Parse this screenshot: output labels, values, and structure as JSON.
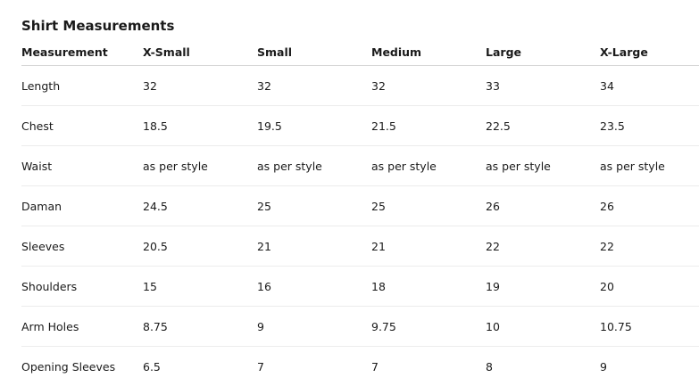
{
  "title": "Shirt Measurements",
  "headers": [
    "Measurement",
    "X-Small",
    "Small",
    "Medium",
    "Large",
    "X-Large"
  ],
  "rows": [
    [
      "Length",
      "32",
      "32",
      "32",
      "33",
      "34"
    ],
    [
      "Chest",
      "18.5",
      "19.5",
      "21.5",
      "22.5",
      "23.5"
    ],
    [
      "Waist",
      "as per style",
      "as per style",
      "as per style",
      "as per style",
      "as per style"
    ],
    [
      "Daman",
      "24.5",
      "25",
      "25",
      "26",
      "26"
    ],
    [
      "Sleeves",
      "20.5",
      "21",
      "21",
      "22",
      "22"
    ],
    [
      "Shoulders",
      "15",
      "16",
      "18",
      "19",
      "20"
    ],
    [
      "Arm Holes",
      "8.75",
      "9",
      "9.75",
      "10",
      "10.75"
    ],
    [
      "Opening Sleeves",
      "6.5",
      "7",
      "7",
      "8",
      "9"
    ]
  ]
}
